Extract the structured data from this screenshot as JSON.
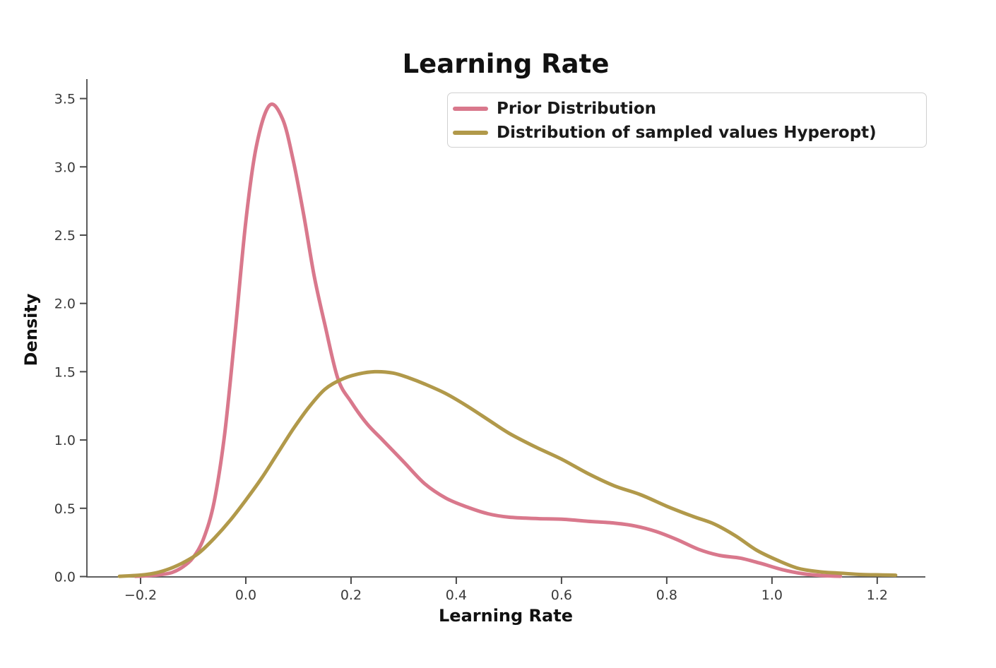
{
  "chart_data": {
    "type": "line",
    "subtype": "kde-density",
    "title": "Learning Rate",
    "xlabel": "Learning Rate",
    "ylabel": "Density",
    "xlim": [
      -0.302,
      1.2915
    ],
    "ylim": [
      0,
      3.64
    ],
    "grid": false,
    "legend_position": "upper-right",
    "xticks": [
      -0.2,
      0.0,
      0.2,
      0.4,
      0.6,
      0.8,
      1.0,
      1.2
    ],
    "xtick_labels": [
      "−0.2",
      "0.0",
      "0.2",
      "0.4",
      "0.6",
      "0.8",
      "1.0",
      "1.2"
    ],
    "yticks": [
      0.0,
      0.5,
      1.0,
      1.5,
      2.0,
      2.5,
      3.0,
      3.5
    ],
    "ytick_labels": [
      "0.0",
      "0.5",
      "1.0",
      "1.5",
      "2.0",
      "2.5",
      "3.0",
      "3.5"
    ],
    "series": [
      {
        "name": "Prior Distribution",
        "color": "#d9788c",
        "peak": {
          "x": 0.045,
          "density": 3.45
        },
        "points": [
          [
            -0.21,
            0.002
          ],
          [
            -0.19,
            0.005
          ],
          [
            -0.16,
            0.015
          ],
          [
            -0.14,
            0.03
          ],
          [
            -0.12,
            0.07
          ],
          [
            -0.1,
            0.14
          ],
          [
            -0.08,
            0.28
          ],
          [
            -0.06,
            0.55
          ],
          [
            -0.04,
            1.05
          ],
          [
            -0.02,
            1.8
          ],
          [
            0.0,
            2.6
          ],
          [
            0.02,
            3.15
          ],
          [
            0.045,
            3.45
          ],
          [
            0.07,
            3.35
          ],
          [
            0.09,
            3.05
          ],
          [
            0.11,
            2.65
          ],
          [
            0.13,
            2.2
          ],
          [
            0.15,
            1.85
          ],
          [
            0.175,
            1.45
          ],
          [
            0.2,
            1.28
          ],
          [
            0.23,
            1.12
          ],
          [
            0.26,
            1.0
          ],
          [
            0.3,
            0.84
          ],
          [
            0.34,
            0.68
          ],
          [
            0.38,
            0.575
          ],
          [
            0.42,
            0.51
          ],
          [
            0.46,
            0.46
          ],
          [
            0.5,
            0.435
          ],
          [
            0.55,
            0.425
          ],
          [
            0.6,
            0.42
          ],
          [
            0.65,
            0.405
          ],
          [
            0.7,
            0.392
          ],
          [
            0.74,
            0.37
          ],
          [
            0.78,
            0.33
          ],
          [
            0.82,
            0.27
          ],
          [
            0.86,
            0.2
          ],
          [
            0.9,
            0.155
          ],
          [
            0.94,
            0.135
          ],
          [
            0.98,
            0.095
          ],
          [
            1.02,
            0.05
          ],
          [
            1.06,
            0.02
          ],
          [
            1.1,
            0.006
          ],
          [
            1.13,
            0.002
          ]
        ]
      },
      {
        "name": "Distribution of sampled values Hyperopt)",
        "color": "#b1994a",
        "peak": {
          "x": 0.26,
          "density": 1.5
        },
        "points": [
          [
            -0.24,
            0.002
          ],
          [
            -0.21,
            0.008
          ],
          [
            -0.18,
            0.02
          ],
          [
            -0.15,
            0.05
          ],
          [
            -0.12,
            0.1
          ],
          [
            -0.09,
            0.17
          ],
          [
            -0.06,
            0.28
          ],
          [
            -0.03,
            0.41
          ],
          [
            0.0,
            0.56
          ],
          [
            0.03,
            0.72
          ],
          [
            0.06,
            0.9
          ],
          [
            0.09,
            1.08
          ],
          [
            0.12,
            1.24
          ],
          [
            0.15,
            1.37
          ],
          [
            0.18,
            1.44
          ],
          [
            0.21,
            1.48
          ],
          [
            0.245,
            1.5
          ],
          [
            0.28,
            1.49
          ],
          [
            0.31,
            1.455
          ],
          [
            0.34,
            1.41
          ],
          [
            0.38,
            1.34
          ],
          [
            0.42,
            1.25
          ],
          [
            0.46,
            1.15
          ],
          [
            0.5,
            1.05
          ],
          [
            0.55,
            0.95
          ],
          [
            0.6,
            0.86
          ],
          [
            0.65,
            0.755
          ],
          [
            0.7,
            0.665
          ],
          [
            0.75,
            0.6
          ],
          [
            0.8,
            0.515
          ],
          [
            0.85,
            0.44
          ],
          [
            0.89,
            0.385
          ],
          [
            0.93,
            0.3
          ],
          [
            0.97,
            0.195
          ],
          [
            1.01,
            0.12
          ],
          [
            1.05,
            0.06
          ],
          [
            1.09,
            0.035
          ],
          [
            1.13,
            0.025
          ],
          [
            1.17,
            0.015
          ],
          [
            1.21,
            0.012
          ],
          [
            1.235,
            0.01
          ]
        ]
      }
    ]
  },
  "style": {
    "spine_color": "#4a4a4a",
    "tick_color": "#4a4a4a",
    "curve_width": 5,
    "background": "#ffffff"
  }
}
